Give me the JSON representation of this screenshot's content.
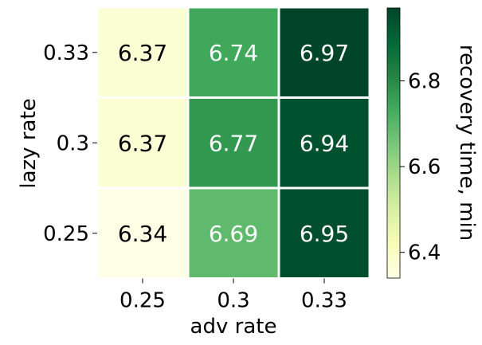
{
  "chart_data": {
    "type": "heatmap",
    "x": [
      "0.25",
      "0.3",
      "0.33"
    ],
    "y": [
      "0.33",
      "0.3",
      "0.25"
    ],
    "values": [
      [
        6.37,
        6.74,
        6.97
      ],
      [
        6.37,
        6.77,
        6.94
      ],
      [
        6.34,
        6.69,
        6.95
      ]
    ],
    "value_labels": [
      [
        "6.37",
        "6.74",
        "6.97"
      ],
      [
        "6.37",
        "6.77",
        "6.94"
      ],
      [
        "6.34",
        "6.69",
        "6.95"
      ]
    ],
    "xlabel": "adv rate",
    "ylabel": "lazy rate",
    "colorbar": {
      "label": "recovery time, min",
      "range": [
        6.34,
        6.97
      ],
      "ticks": [
        6.4,
        6.6,
        6.8
      ],
      "tick_labels": [
        "6.4",
        "6.6",
        "6.8"
      ],
      "colormap": "YlGn"
    },
    "colors": {
      "light_text": "#ffffff",
      "dark_text": "#000000",
      "cell_border": "#ffffff"
    }
  }
}
